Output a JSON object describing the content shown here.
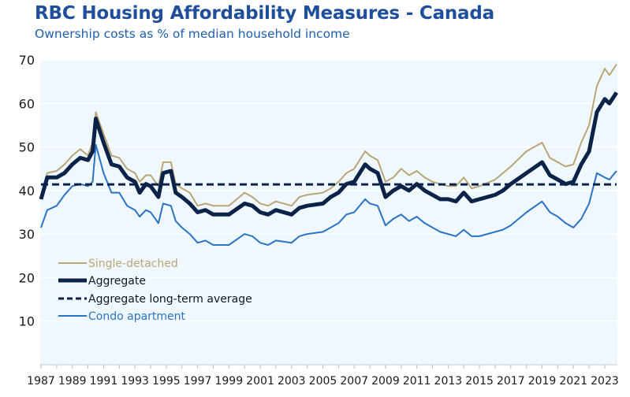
{
  "chart_data": {
    "type": "line",
    "title": "RBC Housing Affordability Measures - Canada",
    "subtitle": "Ownership costs as % of median household income",
    "xlabel": "",
    "ylabel": "",
    "ylim": [
      0,
      70
    ],
    "xlim": [
      1987,
      2024
    ],
    "yticks": [
      10,
      20,
      30,
      40,
      50,
      60,
      70
    ],
    "xticks": [
      "1987",
      "1989",
      "1991",
      "1993",
      "1995",
      "1997",
      "1999",
      "2001",
      "2003",
      "2005",
      "2007",
      "2009",
      "2011",
      "2013",
      "2015",
      "2017",
      "2019",
      "2021",
      "2023"
    ],
    "grid": true,
    "legend_position": "lower-left",
    "colors": {
      "single_detached": "#b9a676",
      "aggregate": "#0b2348",
      "long_term_average": "#0b2348",
      "condo": "#2a73c6",
      "plot_background": "#f0f8ff",
      "gridline": "#ffffff",
      "title": "#1f4e9c"
    },
    "series": [
      {
        "name": "Single-detached",
        "key": "single_detached",
        "x": [
          1987.0,
          1987.4,
          1988.0,
          1988.5,
          1989.0,
          1989.5,
          1990.0,
          1990.3,
          1990.5,
          1991.0,
          1991.5,
          1992.0,
          1992.5,
          1993.0,
          1993.3,
          1993.7,
          1994.0,
          1994.5,
          1994.8,
          1995.3,
          1995.6,
          1996.0,
          1996.5,
          1997.0,
          1997.5,
          1998.0,
          1999.0,
          2000.0,
          2000.5,
          2001.0,
          2001.5,
          2002.0,
          2003.0,
          2003.5,
          2004.0,
          2005.0,
          2005.5,
          2006.0,
          2006.5,
          2007.0,
          2007.7,
          2008.0,
          2008.5,
          2009.0,
          2009.5,
          2010.0,
          2010.5,
          2011.0,
          2011.5,
          2012.0,
          2012.5,
          2013.0,
          2013.5,
          2014.0,
          2014.5,
          2015.0,
          2016.0,
          2016.5,
          2017.0,
          2018.0,
          2019.0,
          2019.5,
          2020.0,
          2020.5,
          2021.0,
          2021.5,
          2022.0,
          2022.5,
          2023.0,
          2023.3,
          2023.75
        ],
        "values": [
          38.5,
          44,
          44.5,
          46,
          48,
          49.5,
          48,
          51,
          58,
          53,
          48,
          47.5,
          45,
          44,
          42,
          43.5,
          43.5,
          41,
          46.5,
          46.5,
          41.5,
          40.5,
          39.5,
          36.5,
          37,
          36.5,
          36.5,
          39.5,
          38.5,
          37,
          36.5,
          37.5,
          36.5,
          38.5,
          39,
          39.5,
          40.5,
          42,
          44,
          45,
          49,
          48,
          47,
          42,
          43,
          45,
          43.5,
          44.5,
          43,
          42,
          41.5,
          41,
          41,
          43,
          40.5,
          41,
          42.5,
          44,
          45.5,
          49,
          51,
          47.5,
          46.5,
          45.5,
          46,
          51,
          55,
          64,
          68,
          66.5,
          69
        ]
      },
      {
        "name": "Aggregate",
        "key": "aggregate",
        "x": [
          1987.0,
          1987.4,
          1988.0,
          1988.5,
          1989.0,
          1989.5,
          1990.0,
          1990.3,
          1990.5,
          1991.0,
          1991.5,
          1992.0,
          1992.5,
          1993.0,
          1993.3,
          1993.7,
          1994.0,
          1994.5,
          1994.8,
          1995.3,
          1995.6,
          1996.0,
          1996.5,
          1997.0,
          1997.5,
          1998.0,
          1999.0,
          2000.0,
          2000.5,
          2001.0,
          2001.5,
          2002.0,
          2003.0,
          2003.5,
          2004.0,
          2005.0,
          2005.5,
          2006.0,
          2006.5,
          2007.0,
          2007.7,
          2008.0,
          2008.5,
          2009.0,
          2009.5,
          2010.0,
          2010.5,
          2011.0,
          2011.5,
          2012.0,
          2012.5,
          2013.0,
          2013.5,
          2014.0,
          2014.5,
          2015.0,
          2016.0,
          2016.5,
          2017.0,
          2018.0,
          2019.0,
          2019.5,
          2020.0,
          2020.5,
          2021.0,
          2021.5,
          2022.0,
          2022.5,
          2023.0,
          2023.3,
          2023.75
        ],
        "values": [
          38,
          43,
          43,
          44,
          46,
          47.5,
          47,
          49,
          56.5,
          51,
          46,
          45.5,
          43,
          42,
          39.5,
          41.5,
          41,
          38.5,
          44,
          44.5,
          39.5,
          38.5,
          37,
          35,
          35.5,
          34.5,
          34.5,
          37,
          36.5,
          35,
          34.5,
          35.5,
          34.5,
          36,
          36.5,
          37,
          38.5,
          39.5,
          41.5,
          42,
          46,
          45,
          44,
          38.5,
          40,
          41,
          40,
          41.5,
          40,
          39,
          38,
          38,
          37.5,
          39.5,
          37.5,
          38,
          39,
          40,
          41.5,
          44,
          46.5,
          43.5,
          42.5,
          41.5,
          42,
          46,
          49,
          58,
          61,
          60,
          62.5
        ]
      },
      {
        "name": "Aggregate long-term average",
        "key": "long_term_average",
        "x": [
          1987.0,
          2023.75
        ],
        "values": [
          41.4,
          41.4
        ]
      },
      {
        "name": "Condo apartment",
        "key": "condo",
        "x": [
          1987.0,
          1987.4,
          1988.0,
          1988.5,
          1989.0,
          1989.5,
          1990.0,
          1990.3,
          1990.5,
          1991.0,
          1991.5,
          1992.0,
          1992.5,
          1993.0,
          1993.3,
          1993.7,
          1994.0,
          1994.5,
          1994.8,
          1995.3,
          1995.6,
          1996.0,
          1996.5,
          1997.0,
          1997.5,
          1998.0,
          1999.0,
          2000.0,
          2000.5,
          2001.0,
          2001.5,
          2002.0,
          2003.0,
          2003.5,
          2004.0,
          2005.0,
          2005.5,
          2006.0,
          2006.5,
          2007.0,
          2007.7,
          2008.0,
          2008.5,
          2009.0,
          2009.5,
          2010.0,
          2010.5,
          2011.0,
          2011.5,
          2012.0,
          2012.5,
          2013.0,
          2013.5,
          2014.0,
          2014.5,
          2015.0,
          2016.0,
          2016.5,
          2017.0,
          2018.0,
          2019.0,
          2019.5,
          2020.0,
          2020.5,
          2021.0,
          2021.5,
          2022.0,
          2022.5,
          2023.0,
          2023.3,
          2023.75
        ],
        "values": [
          31.5,
          35.5,
          36.5,
          39,
          41,
          41.5,
          41,
          42,
          50.5,
          44,
          39.5,
          39.5,
          36.5,
          35.5,
          34,
          35.5,
          35,
          32.5,
          37,
          36.5,
          33,
          31.5,
          30,
          28,
          28.5,
          27.5,
          27.5,
          30,
          29.5,
          28,
          27.5,
          28.5,
          28,
          29.5,
          30,
          30.5,
          31.5,
          32.5,
          34.5,
          35,
          38,
          37,
          36.5,
          32,
          33.5,
          34.5,
          33,
          34,
          32.5,
          31.5,
          30.5,
          30,
          29.5,
          31,
          29.5,
          29.5,
          30.5,
          31,
          32,
          35,
          37.5,
          35,
          34,
          32.5,
          31.5,
          33.5,
          37,
          44,
          43,
          42.5,
          44.5
        ]
      }
    ],
    "legend": [
      {
        "label": "Single-detached",
        "key": "single_detached",
        "style": "thin-solid"
      },
      {
        "label": "Aggregate",
        "key": "aggregate",
        "style": "thick-solid"
      },
      {
        "label": "Aggregate long-term average",
        "key": "long_term_average",
        "style": "dashed"
      },
      {
        "label": "Condo apartment",
        "key": "condo",
        "style": "solid"
      }
    ]
  }
}
